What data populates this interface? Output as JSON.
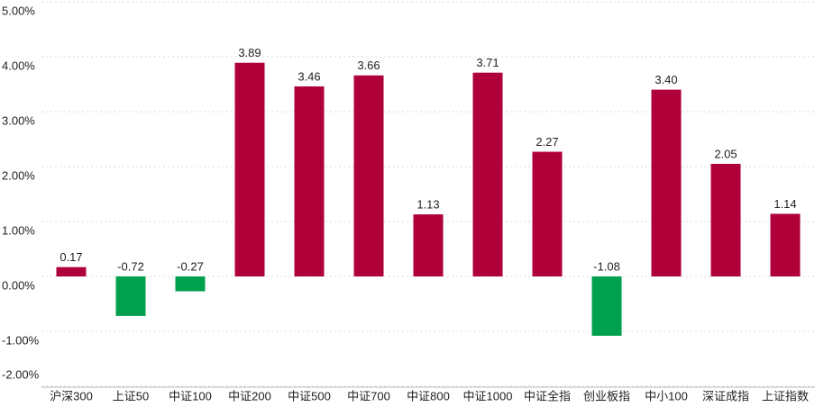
{
  "chart_data": {
    "type": "bar",
    "categories": [
      "沪深300",
      "上证50",
      "中证100",
      "中证200",
      "中证500",
      "中证700",
      "中证800",
      "中证1000",
      "中证全指",
      "创业板指",
      "中小100",
      "深证成指",
      "上证指数"
    ],
    "values": [
      0.17,
      -0.72,
      -0.27,
      3.89,
      3.46,
      3.66,
      1.13,
      3.71,
      2.27,
      -1.08,
      3.4,
      2.05,
      1.14
    ],
    "value_labels": [
      "0.17",
      "-0.72",
      "-0.27",
      "3.89",
      "3.46",
      "3.66",
      "1.13",
      "3.71",
      "2.27",
      "-1.08",
      "3.40",
      "2.05",
      "1.14"
    ],
    "positive_color": "#b0003a",
    "negative_color": "#00a04e",
    "ylim": [
      -2,
      5
    ],
    "yticks": [
      {
        "value": 5,
        "label": "5.00%"
      },
      {
        "value": 4,
        "label": "4.00%"
      },
      {
        "value": 3,
        "label": "3.00%"
      },
      {
        "value": 2,
        "label": "2.00%"
      },
      {
        "value": 1,
        "label": "1.00%"
      },
      {
        "value": 0,
        "label": "0.00%"
      },
      {
        "value": -1,
        "label": "-1.00%"
      },
      {
        "value": -2,
        "label": "-2.00%"
      }
    ],
    "grid": true
  }
}
